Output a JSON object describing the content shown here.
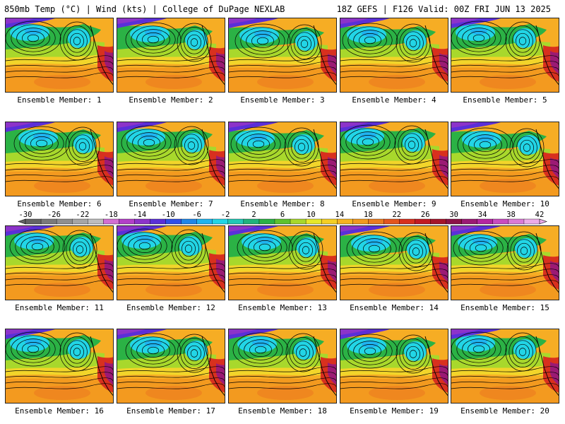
{
  "header": {
    "left": "850mb Temp (°C) | Wind (kts) | College of DuPage NEXLAB",
    "right": "18Z GEFS | F126 Valid: 00Z FRI JUN 13 2025"
  },
  "members": [
    {
      "label": "Ensemble Member: 1"
    },
    {
      "label": "Ensemble Member: 2"
    },
    {
      "label": "Ensemble Member: 3"
    },
    {
      "label": "Ensemble Member: 4"
    },
    {
      "label": "Ensemble Member: 5"
    },
    {
      "label": "Ensemble Member: 6"
    },
    {
      "label": "Ensemble Member: 7"
    },
    {
      "label": "Ensemble Member: 8"
    },
    {
      "label": "Ensemble Member: 9"
    },
    {
      "label": "Ensemble Member: 10"
    },
    {
      "label": "Ensemble Member: 11"
    },
    {
      "label": "Ensemble Member: 12"
    },
    {
      "label": "Ensemble Member: 13"
    },
    {
      "label": "Ensemble Member: 14"
    },
    {
      "label": "Ensemble Member: 15"
    },
    {
      "label": "Ensemble Member: 16"
    },
    {
      "label": "Ensemble Member: 17"
    },
    {
      "label": "Ensemble Member: 18"
    },
    {
      "label": "Ensemble Member: 19"
    },
    {
      "label": "Ensemble Member: 20"
    }
  ],
  "colorbar": {
    "tick_labels": [
      "-30",
      "-26",
      "-22",
      "-18",
      "-14",
      "-10",
      "-6",
      "-2",
      "2",
      "6",
      "10",
      "14",
      "18",
      "22",
      "26",
      "30",
      "34",
      "38",
      "42"
    ],
    "colors": [
      "#646464",
      "#7a7a7a",
      "#8f8f8f",
      "#a6a6a6",
      "#bdbdbd",
      "#d26fd2",
      "#b33fc8",
      "#8c33c9",
      "#5a2fd8",
      "#2f4fe8",
      "#1f86e8",
      "#1fb4f0",
      "#22d5e6",
      "#21c9b5",
      "#20b37c",
      "#2bb245",
      "#5ec22e",
      "#a8d82c",
      "#e6e82a",
      "#f5cf24",
      "#f6b321",
      "#f19a1f",
      "#ec7c1f",
      "#e4551e",
      "#d8301e",
      "#c21a23",
      "#a5142b",
      "#8d1246",
      "#9b1a74",
      "#b526a0",
      "#c94cc0",
      "#db7ad6",
      "#ecabe8"
    ]
  }
}
